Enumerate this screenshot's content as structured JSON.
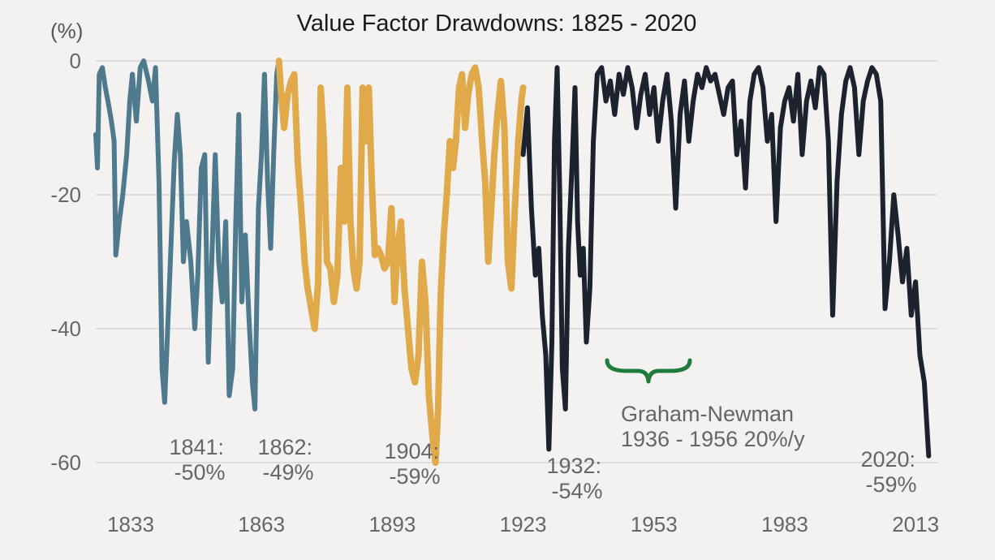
{
  "chart_data": {
    "type": "line",
    "title": "Value Factor Drawdowns: 1825 - 2020",
    "ylabel": "(%)",
    "xlabel": "",
    "xlim": [
      1825,
      2018
    ],
    "ylim": [
      -65,
      3
    ],
    "x_ticks": [
      1833,
      1863,
      1893,
      1923,
      1953,
      1983,
      2013
    ],
    "y_ticks": [
      0,
      -20,
      -40,
      -60
    ],
    "grid": true,
    "colors": {
      "era1": "#4f7a8e",
      "era2": "#e0a94a",
      "era3": "#1c232e",
      "bracket": "#1e7d3c"
    },
    "series": [
      {
        "era": "1825-1867",
        "color": "#4f7a8e",
        "points": [
          [
            1825,
            -11
          ],
          [
            1825.4,
            -16
          ],
          [
            1825.8,
            -2
          ],
          [
            1826.5,
            -1
          ],
          [
            1827.2,
            -4
          ],
          [
            1827.8,
            -6
          ],
          [
            1828.6,
            -9
          ],
          [
            1829.2,
            -12
          ],
          [
            1829.6,
            -29
          ],
          [
            1830.4,
            -24
          ],
          [
            1831.2,
            -20
          ],
          [
            1832.1,
            -14
          ],
          [
            1832.8,
            -6
          ],
          [
            1833.4,
            -2
          ],
          [
            1834.3,
            -9
          ],
          [
            1835.2,
            -1
          ],
          [
            1836,
            0
          ],
          [
            1837.1,
            -3
          ],
          [
            1838,
            -6
          ],
          [
            1838.7,
            -1
          ],
          [
            1839.5,
            -18
          ],
          [
            1840.2,
            -46
          ],
          [
            1840.8,
            -51
          ],
          [
            1841.3,
            -43
          ],
          [
            1842.1,
            -30
          ],
          [
            1843,
            -15
          ],
          [
            1843.7,
            -8
          ],
          [
            1844.4,
            -14
          ],
          [
            1845.1,
            -30
          ],
          [
            1845.8,
            -24
          ],
          [
            1846.8,
            -30
          ],
          [
            1847.7,
            -40
          ],
          [
            1848.4,
            -32
          ],
          [
            1849.2,
            -16
          ],
          [
            1850,
            -14
          ],
          [
            1850.8,
            -45
          ],
          [
            1851.6,
            -30
          ],
          [
            1852.4,
            -14
          ],
          [
            1853.2,
            -30
          ],
          [
            1854,
            -36
          ],
          [
            1854.8,
            -24
          ],
          [
            1855.6,
            -50
          ],
          [
            1856.4,
            -46
          ],
          [
            1857.1,
            -24
          ],
          [
            1857.8,
            -8
          ],
          [
            1858.5,
            -36
          ],
          [
            1859.3,
            -26
          ],
          [
            1860.1,
            -38
          ],
          [
            1860.9,
            -48
          ],
          [
            1861.5,
            -52
          ],
          [
            1862.3,
            -22
          ],
          [
            1863,
            -14
          ],
          [
            1863.7,
            -2
          ],
          [
            1864.4,
            -18
          ],
          [
            1865.1,
            -28
          ],
          [
            1865.8,
            -14
          ],
          [
            1866.5,
            -2
          ],
          [
            1867,
            0
          ]
        ]
      },
      {
        "era": "1867-1923",
        "color": "#e0a94a",
        "points": [
          [
            1867,
            0
          ],
          [
            1867.5,
            -5
          ],
          [
            1868.2,
            -10
          ],
          [
            1869,
            -5
          ],
          [
            1869.8,
            -3
          ],
          [
            1870.5,
            -2
          ],
          [
            1871.3,
            -15
          ],
          [
            1872.1,
            -22
          ],
          [
            1872.9,
            -30
          ],
          [
            1873.6,
            -34
          ],
          [
            1874.4,
            -37
          ],
          [
            1875.2,
            -40
          ],
          [
            1876,
            -33
          ],
          [
            1876.6,
            -4
          ],
          [
            1877.3,
            -12
          ],
          [
            1878,
            -30
          ],
          [
            1878.8,
            -31
          ],
          [
            1879.6,
            -36
          ],
          [
            1880.4,
            -32
          ],
          [
            1881.2,
            -16
          ],
          [
            1882,
            -24
          ],
          [
            1882.7,
            -4
          ],
          [
            1883.4,
            -24
          ],
          [
            1884.1,
            -31
          ],
          [
            1884.8,
            -34
          ],
          [
            1885.5,
            -30
          ],
          [
            1886.2,
            -4
          ],
          [
            1886.9,
            -12
          ],
          [
            1887.6,
            -4
          ],
          [
            1888.3,
            -18
          ],
          [
            1889,
            -29
          ],
          [
            1889.7,
            -28
          ],
          [
            1890.4,
            -29
          ],
          [
            1891.2,
            -31
          ],
          [
            1892,
            -30
          ],
          [
            1892.8,
            -22
          ],
          [
            1893.5,
            -36
          ],
          [
            1894.2,
            -28
          ],
          [
            1895,
            -24
          ],
          [
            1895.8,
            -34
          ],
          [
            1896.6,
            -40
          ],
          [
            1897.4,
            -46
          ],
          [
            1898.2,
            -48
          ],
          [
            1899,
            -44
          ],
          [
            1899.8,
            -30
          ],
          [
            1900.6,
            -36
          ],
          [
            1901.4,
            -50
          ],
          [
            1902.2,
            -56
          ],
          [
            1902.9,
            -60
          ],
          [
            1903.5,
            -52
          ],
          [
            1904.1,
            -35
          ],
          [
            1904.8,
            -26
          ],
          [
            1905.5,
            -20
          ],
          [
            1906.2,
            -12
          ],
          [
            1906.9,
            -16
          ],
          [
            1907.6,
            -12
          ],
          [
            1908.3,
            -4
          ],
          [
            1909,
            -2
          ],
          [
            1909.7,
            -10
          ],
          [
            1910.4,
            -5
          ],
          [
            1911.2,
            -2
          ],
          [
            1912,
            -1
          ],
          [
            1912.8,
            -4
          ],
          [
            1913.6,
            -12
          ],
          [
            1914.3,
            -18
          ],
          [
            1915,
            -30
          ],
          [
            1915.7,
            -22
          ],
          [
            1916.4,
            -14
          ],
          [
            1917.1,
            -8
          ],
          [
            1917.9,
            -3
          ],
          [
            1918.7,
            -10
          ],
          [
            1919.5,
            -30
          ],
          [
            1920.3,
            -34
          ],
          [
            1921.1,
            -22
          ],
          [
            1921.9,
            -12
          ],
          [
            1922.6,
            -6
          ],
          [
            1923,
            -4
          ]
        ]
      },
      {
        "era": "1923-2020",
        "color": "#1c232e",
        "points": [
          [
            1923,
            -14
          ],
          [
            1924,
            -7
          ],
          [
            1924.9,
            -22
          ],
          [
            1925.8,
            -32
          ],
          [
            1926.6,
            -28
          ],
          [
            1927.4,
            -38
          ],
          [
            1928.2,
            -44
          ],
          [
            1928.9,
            -58
          ],
          [
            1929.6,
            -42
          ],
          [
            1930.2,
            -12
          ],
          [
            1930.8,
            -1
          ],
          [
            1931.4,
            -20
          ],
          [
            1932,
            -46
          ],
          [
            1932.7,
            -52
          ],
          [
            1933.4,
            -28
          ],
          [
            1934.2,
            -16
          ],
          [
            1934.9,
            -4
          ],
          [
            1935.5,
            -24
          ],
          [
            1936.1,
            -32
          ],
          [
            1936.8,
            -28
          ],
          [
            1937.5,
            -42
          ],
          [
            1938.3,
            -34
          ],
          [
            1939.1,
            -12
          ],
          [
            1940,
            -2
          ],
          [
            1941,
            -1
          ],
          [
            1942,
            -6
          ],
          [
            1943,
            -3
          ],
          [
            1944,
            -8
          ],
          [
            1945,
            -2
          ],
          [
            1946,
            -5
          ],
          [
            1947,
            -1
          ],
          [
            1948,
            -4
          ],
          [
            1949,
            -10
          ],
          [
            1950,
            -5
          ],
          [
            1951,
            -2
          ],
          [
            1952,
            -8
          ],
          [
            1953,
            -4
          ],
          [
            1954,
            -12
          ],
          [
            1955,
            -6
          ],
          [
            1956,
            -2
          ],
          [
            1957,
            -9
          ],
          [
            1958,
            -22
          ],
          [
            1959,
            -8
          ],
          [
            1960,
            -3
          ],
          [
            1961,
            -12
          ],
          [
            1962,
            -6
          ],
          [
            1963,
            -2
          ],
          [
            1964,
            -4
          ],
          [
            1965,
            -1
          ],
          [
            1966,
            -3
          ],
          [
            1967,
            -2
          ],
          [
            1968,
            -5
          ],
          [
            1969,
            -8
          ],
          [
            1970,
            -4
          ],
          [
            1971,
            -3
          ],
          [
            1972,
            -14
          ],
          [
            1973,
            -9
          ],
          [
            1974,
            -19
          ],
          [
            1975,
            -6
          ],
          [
            1976,
            -2
          ],
          [
            1977,
            -1
          ],
          [
            1978,
            -4
          ],
          [
            1979,
            -12
          ],
          [
            1980,
            -8
          ],
          [
            1981,
            -24
          ],
          [
            1982,
            -10
          ],
          [
            1983,
            -6
          ],
          [
            1984,
            -4
          ],
          [
            1985,
            -9
          ],
          [
            1986,
            -2
          ],
          [
            1987,
            -14
          ],
          [
            1988,
            -6
          ],
          [
            1989,
            -3
          ],
          [
            1990,
            -7
          ],
          [
            1991,
            -1
          ],
          [
            1992,
            -2
          ],
          [
            1993,
            -12
          ],
          [
            1994,
            -38
          ],
          [
            1995,
            -18
          ],
          [
            1996,
            -8
          ],
          [
            1997,
            -3
          ],
          [
            1998,
            -1
          ],
          [
            1999,
            -4
          ],
          [
            2000,
            -14
          ],
          [
            2001,
            -6
          ],
          [
            2002,
            -3
          ],
          [
            2003,
            -1
          ],
          [
            2004,
            -2
          ],
          [
            2005,
            -6
          ],
          [
            2006,
            -37
          ],
          [
            2007,
            -30
          ],
          [
            2008,
            -20
          ],
          [
            2009,
            -26
          ],
          [
            2010,
            -33
          ],
          [
            2011,
            -28
          ],
          [
            2012,
            -38
          ],
          [
            2013,
            -33
          ],
          [
            2014,
            -44
          ],
          [
            2015,
            -48
          ],
          [
            2016,
            -59
          ]
        ]
      }
    ],
    "annotations": [
      {
        "lines": [
          "1841:",
          "-50%"
        ]
      },
      {
        "lines": [
          "1862:",
          "-49%"
        ]
      },
      {
        "lines": [
          "1904:",
          "-59%"
        ]
      },
      {
        "lines": [
          "1932:",
          "-54%"
        ]
      },
      {
        "lines": [
          "Graham-Newman",
          "1936 - 1956 20%/y"
        ]
      },
      {
        "lines": [
          "2020:",
          "-59%"
        ]
      }
    ]
  }
}
